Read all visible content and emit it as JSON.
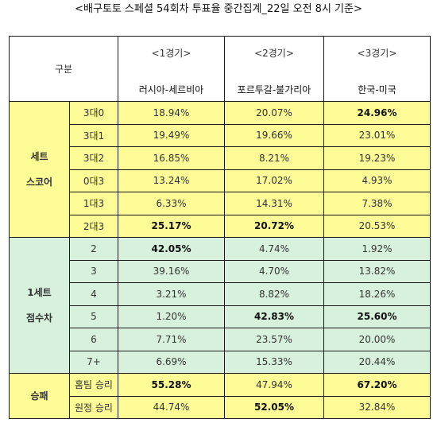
{
  "title": "<배구토토 스페셜 54회차 투표율 중간집계_22일 오전 8시 기준>",
  "header": {
    "gubun": "구분",
    "games": [
      {
        "game": "<1경기>",
        "match": "러시아-세르비아"
      },
      {
        "game": "<2경기>",
        "match": "포르투갈-불가리아"
      },
      {
        "game": "<3경기>",
        "match": "한국-미국"
      }
    ]
  },
  "sections": [
    {
      "label_line1": "세트",
      "label_line2": "스코어",
      "color": "#fcfb95",
      "rows": [
        {
          "sub": "3대0",
          "values": [
            "18.94%",
            "20.07%",
            "24.96%"
          ],
          "bold": [
            false,
            false,
            true
          ]
        },
        {
          "sub": "3대1",
          "values": [
            "19.49%",
            "19.66%",
            "23.01%"
          ],
          "bold": [
            false,
            false,
            false
          ]
        },
        {
          "sub": "3대2",
          "values": [
            "16.85%",
            "8.21%",
            "19.23%"
          ],
          "bold": [
            false,
            false,
            false
          ]
        },
        {
          "sub": "0대3",
          "values": [
            "13.24%",
            "17.02%",
            "4.93%"
          ],
          "bold": [
            false,
            false,
            false
          ]
        },
        {
          "sub": "1대3",
          "values": [
            "6.33%",
            "14.31%",
            "7.38%"
          ],
          "bold": [
            false,
            false,
            false
          ]
        },
        {
          "sub": "2대3",
          "values": [
            "25.17%",
            "20.72%",
            "20.53%"
          ],
          "bold": [
            true,
            true,
            false
          ]
        }
      ]
    },
    {
      "label_line1": "1세트",
      "label_line2": "점수차",
      "color": "#d7f1dc",
      "rows": [
        {
          "sub": "2",
          "values": [
            "42.05%",
            "4.74%",
            "1.92%"
          ],
          "bold": [
            true,
            false,
            false
          ]
        },
        {
          "sub": "3",
          "values": [
            "39.16%",
            "4.70%",
            "13.82%"
          ],
          "bold": [
            false,
            false,
            false
          ]
        },
        {
          "sub": "4",
          "values": [
            "3.21%",
            "8.82%",
            "18.26%"
          ],
          "bold": [
            false,
            false,
            false
          ]
        },
        {
          "sub": "5",
          "values": [
            "1.20%",
            "42.83%",
            "25.60%"
          ],
          "bold": [
            false,
            true,
            true
          ]
        },
        {
          "sub": "6",
          "values": [
            "7.71%",
            "23.57%",
            "20.00%"
          ],
          "bold": [
            false,
            false,
            false
          ]
        },
        {
          "sub": "7+",
          "values": [
            "6.69%",
            "15.33%",
            "20.44%"
          ],
          "bold": [
            false,
            false,
            false
          ]
        }
      ]
    },
    {
      "label_line1": "승패",
      "label_line2": "",
      "color": "#fcfb95",
      "rows": [
        {
          "sub": "홈팀 승리",
          "values": [
            "55.28%",
            "47.94%",
            "67.20%"
          ],
          "bold": [
            true,
            false,
            true
          ]
        },
        {
          "sub": "원정 승리",
          "values": [
            "44.74%",
            "52.05%",
            "32.84%"
          ],
          "bold": [
            false,
            true,
            false
          ]
        }
      ]
    }
  ]
}
